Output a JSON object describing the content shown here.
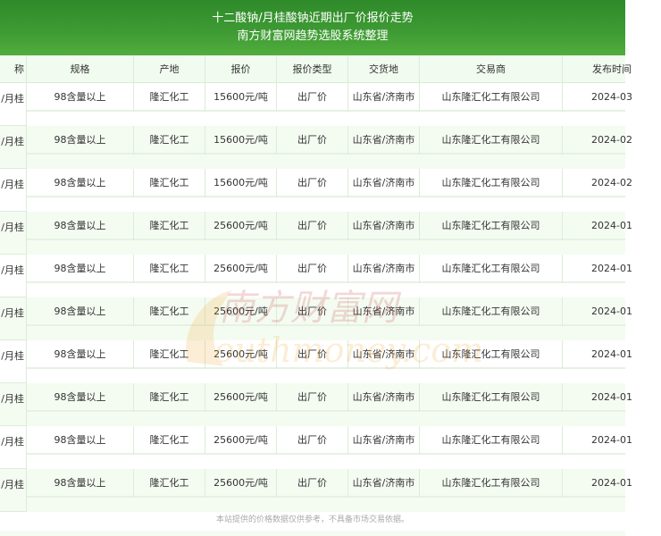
{
  "header": {
    "title": "十二酸钠/月桂酸钠近期出厂价报价走势",
    "subtitle": "南方财富网趋势选股系统整理"
  },
  "table": {
    "columns": [
      "称",
      "规格",
      "产地",
      "报价",
      "报价类型",
      "交货地",
      "交易商",
      "发布时间"
    ],
    "rows": [
      {
        "name": "/月桂",
        "spec": "98含量以上",
        "origin": "隆汇化工",
        "price": "15600元/吨",
        "type": "出厂价",
        "delivery": "山东省/济南市",
        "trader": "山东隆汇化工有限公司",
        "date": "2024-03"
      },
      {
        "name": "/月桂",
        "spec": "98含量以上",
        "origin": "隆汇化工",
        "price": "15600元/吨",
        "type": "出厂价",
        "delivery": "山东省/济南市",
        "trader": "山东隆汇化工有限公司",
        "date": "2024-02"
      },
      {
        "name": "/月桂",
        "spec": "98含量以上",
        "origin": "隆汇化工",
        "price": "15600元/吨",
        "type": "出厂价",
        "delivery": "山东省/济南市",
        "trader": "山东隆汇化工有限公司",
        "date": "2024-02"
      },
      {
        "name": "/月桂",
        "spec": "98含量以上",
        "origin": "隆汇化工",
        "price": "25600元/吨",
        "type": "出厂价",
        "delivery": "山东省/济南市",
        "trader": "山东隆汇化工有限公司",
        "date": "2024-01"
      },
      {
        "name": "/月桂",
        "spec": "98含量以上",
        "origin": "隆汇化工",
        "price": "25600元/吨",
        "type": "出厂价",
        "delivery": "山东省/济南市",
        "trader": "山东隆汇化工有限公司",
        "date": "2024-01"
      },
      {
        "name": "/月桂",
        "spec": "98含量以上",
        "origin": "隆汇化工",
        "price": "25600元/吨",
        "type": "出厂价",
        "delivery": "山东省/济南市",
        "trader": "山东隆汇化工有限公司",
        "date": "2024-01"
      },
      {
        "name": "/月桂",
        "spec": "98含量以上",
        "origin": "隆汇化工",
        "price": "25600元/吨",
        "type": "出厂价",
        "delivery": "山东省/济南市",
        "trader": "山东隆汇化工有限公司",
        "date": "2024-01"
      },
      {
        "name": "/月桂",
        "spec": "98含量以上",
        "origin": "隆汇化工",
        "price": "25600元/吨",
        "type": "出厂价",
        "delivery": "山东省/济南市",
        "trader": "山东隆汇化工有限公司",
        "date": "2024-01"
      },
      {
        "name": "/月桂",
        "spec": "98含量以上",
        "origin": "隆汇化工",
        "price": "25600元/吨",
        "type": "出厂价",
        "delivery": "山东省/济南市",
        "trader": "山东隆汇化工有限公司",
        "date": "2024-01"
      },
      {
        "name": "/月桂",
        "spec": "98含量以上",
        "origin": "隆汇化工",
        "price": "25600元/吨",
        "type": "出厂价",
        "delivery": "山东省/济南市",
        "trader": "山东隆汇化工有限公司",
        "date": "2024-01"
      }
    ]
  },
  "watermark": {
    "cn": "南方财富网",
    "en": "southmoney.com"
  },
  "footer": {
    "disclaimer": "本站提供的价格数据仅供参考，不具备市场交易依据。"
  },
  "colors": {
    "brand_green": "#3d9a33",
    "row_alt": "#f4fcf2",
    "header_bg": "#f1fbef"
  }
}
